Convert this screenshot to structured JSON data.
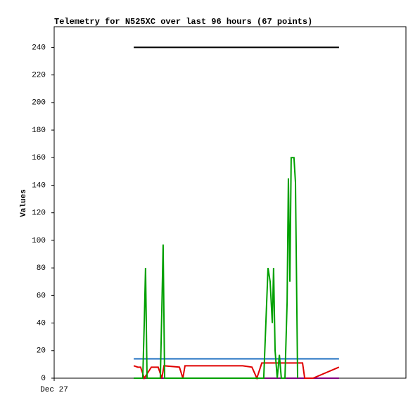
{
  "chart_data": {
    "type": "line",
    "title": "Telemetry for N525XC over last 96 hours (67 points)",
    "y_label": "Values",
    "xlim": [
      0,
      164
    ],
    "xticks": [
      {
        "value": 0,
        "label": "Dec 27"
      }
    ],
    "ylim": [
      0,
      255
    ],
    "yticks": [
      0,
      20,
      40,
      60,
      80,
      100,
      120,
      140,
      160,
      180,
      200,
      220,
      240
    ],
    "grid": false,
    "series": [
      {
        "color": "#000000",
        "x": [
          37.1,
          132.8
        ],
        "values": [
          240,
          240
        ]
      },
      {
        "color": "#1f6fc0",
        "x": [
          37.1,
          132.8
        ],
        "values": [
          14,
          14
        ]
      },
      {
        "color": "#800080",
        "x": [
          37.1,
          132.8
        ],
        "values": [
          0,
          0
        ]
      },
      {
        "color": "#e00000",
        "x": [
          37.1,
          39.0,
          40.3,
          42.0,
          45.3,
          48.5,
          50.2,
          51.2,
          58.4,
          60.0,
          61.0,
          62.6,
          87.9,
          92.2,
          94.5,
          96.8,
          115.8,
          116.8,
          120.7,
          132.8
        ],
        "values": [
          9,
          8,
          8,
          0,
          8,
          8,
          0,
          9,
          8,
          0,
          9,
          9,
          9,
          8,
          0,
          11,
          11,
          0,
          0,
          8
        ]
      },
      {
        "color": "#00a000",
        "x": [
          37.1,
          41.3,
          42.0,
          42.6,
          43.3,
          49.5,
          50.2,
          50.8,
          51.5,
          97.7,
          98.7,
          99.7,
          100.7,
          101.7,
          102.3,
          103.0,
          104.0,
          105.0,
          105.9,
          107.6,
          108.6,
          109.2,
          109.9,
          110.5,
          111.8,
          112.5,
          113.5
        ],
        "values": [
          0,
          0,
          40,
          80,
          0,
          0,
          50,
          97,
          0,
          0,
          40,
          80,
          70,
          40,
          80,
          20,
          0,
          17,
          0,
          0,
          55,
          145,
          70,
          160,
          160,
          142,
          0
        ]
      }
    ]
  }
}
